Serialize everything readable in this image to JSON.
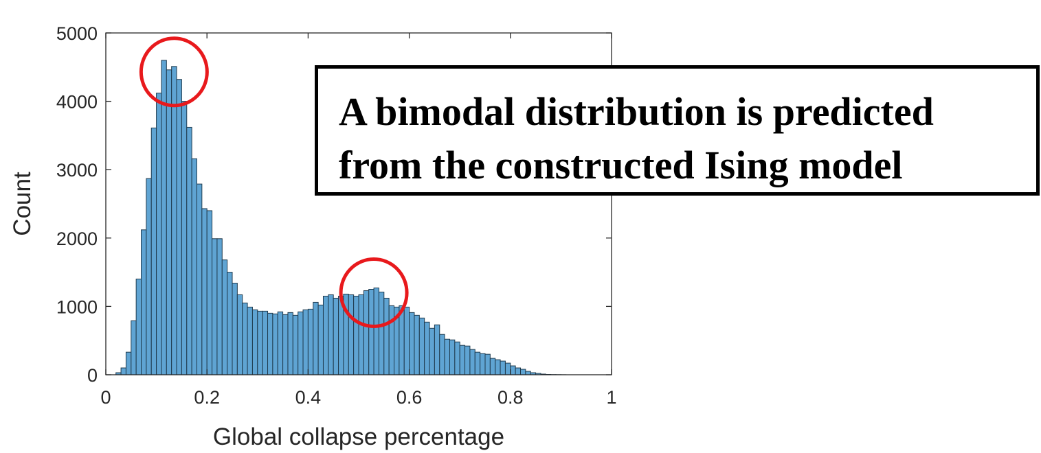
{
  "chart_data": {
    "type": "bar",
    "title": "",
    "xlabel": "Global collapse percentage",
    "ylabel": "Count",
    "xlim": [
      0,
      1
    ],
    "ylim": [
      0,
      5000
    ],
    "x_ticks": [
      "0",
      "0.2",
      "0.4",
      "0.6",
      "0.8",
      "1"
    ],
    "y_ticks": [
      "0",
      "1000",
      "2000",
      "3000",
      "4000",
      "5000"
    ],
    "grid": false,
    "bin_width": 0.01,
    "bin_start": 0.0,
    "series": [
      {
        "values": [
          0,
          0,
          30,
          100,
          330,
          790,
          1400,
          2120,
          2870,
          3610,
          4120,
          4600,
          4460,
          4510,
          4320,
          4000,
          3620,
          3160,
          2790,
          2430,
          2400,
          1990,
          1990,
          1680,
          1500,
          1340,
          1170,
          1050,
          990,
          950,
          930,
          930,
          900,
          890,
          920,
          880,
          910,
          870,
          920,
          950,
          960,
          1060,
          1020,
          1150,
          1170,
          1120,
          1150,
          1180,
          1170,
          1150,
          1170,
          1230,
          1250,
          1270,
          1210,
          1120,
          1010,
          990,
          1010,
          990,
          910,
          870,
          830,
          770,
          680,
          730,
          590,
          520,
          510,
          480,
          430,
          420,
          370,
          330,
          310,
          300,
          240,
          220,
          200,
          170,
          130,
          100,
          80,
          50,
          30,
          20,
          10,
          5,
          3,
          2,
          1,
          0,
          0,
          0,
          0,
          0,
          0,
          0,
          0,
          0
        ]
      }
    ],
    "annotations": [
      {
        "type": "circle",
        "x": 0.135,
        "y": 4430
      },
      {
        "type": "circle",
        "x": 0.53,
        "y": 1200
      }
    ]
  },
  "callout": {
    "line1": "A bimodal distribution is predicted",
    "line2": "from the constructed Ising model"
  },
  "colors": {
    "bar_fill": "#5fa4d3",
    "bar_edge": "#1f3a4d",
    "highlight": "#e8191c"
  }
}
